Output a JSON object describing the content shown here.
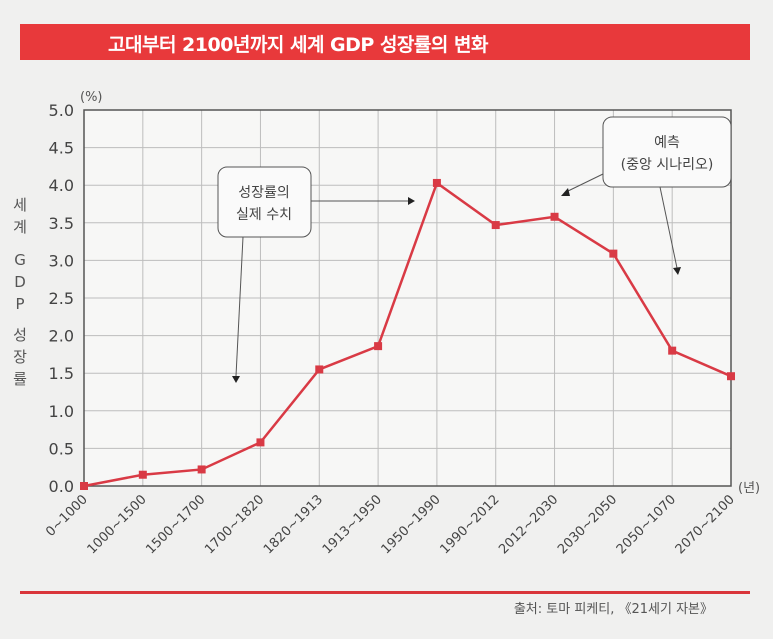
{
  "title": "고대부터 2100년까지 세계 GDP 성장률의 변화",
  "source": "출처: 토마 피케티, 《21세기 자본》",
  "colors": {
    "accent": "#e8393b",
    "line": "#d93a45",
    "grid": "#bdbdbd"
  },
  "chart_data": {
    "type": "line",
    "title": "고대부터 2100년까지 세계 GDP 성장률의 변화",
    "xlabel": "(년)",
    "ylabel": [
      "세",
      "계",
      "G",
      "D",
      "P",
      "성",
      "장",
      "률"
    ],
    "y_unit": "(%)",
    "ylim": [
      0,
      5
    ],
    "yticks": [
      "0.0",
      "0.5",
      "1.0",
      "1.5",
      "2.0",
      "2.5",
      "3.0",
      "3.5",
      "4.0",
      "4.5",
      "5.0"
    ],
    "grid": true,
    "categories": [
      "0~1000",
      "1000~1500",
      "1500~1700",
      "1700~1820",
      "1820~1913",
      "1913~1950",
      "1950~1990",
      "1990~2012",
      "2012~2030",
      "2030~2050",
      "2050~1070",
      "2070~2100"
    ],
    "series": [
      {
        "name": "세계 GDP 성장률",
        "values": [
          0.0,
          0.15,
          0.22,
          0.58,
          1.55,
          1.86,
          4.03,
          3.47,
          3.58,
          3.09,
          1.8,
          1.46
        ]
      }
    ],
    "annotations": [
      {
        "lines": [
          "성장률의",
          "실제 수치"
        ]
      },
      {
        "lines": [
          "예측",
          "(중앙 시나리오)"
        ]
      }
    ]
  }
}
